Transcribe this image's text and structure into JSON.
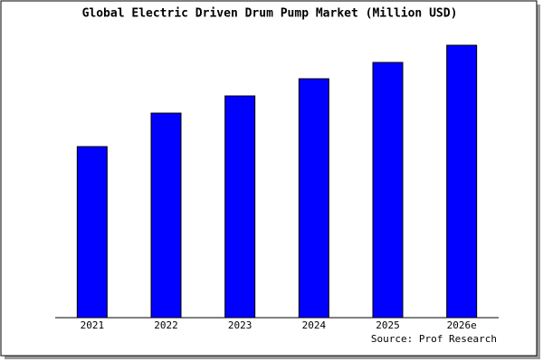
{
  "chart_data": {
    "type": "bar",
    "title": "Global Electric Driven Drum Pump Market (Million USD)",
    "categories": [
      "2021",
      "2022",
      "2023",
      "2024",
      "2025",
      "2026e"
    ],
    "values": [
      189,
      226,
      245,
      264,
      282,
      301
    ],
    "color": "#0000ff",
    "ylim": [
      0,
      306
    ],
    "source": "Source: Prof Research"
  }
}
